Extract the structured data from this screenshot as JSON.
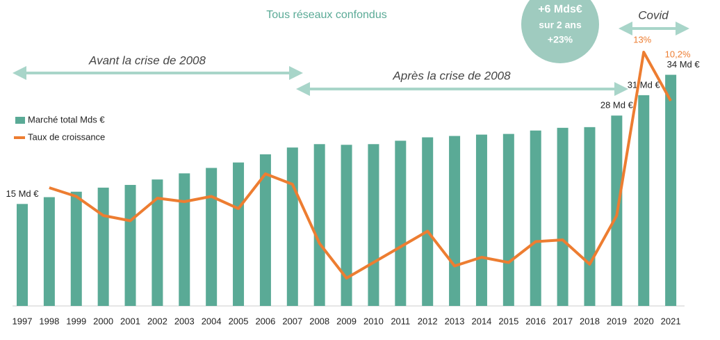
{
  "chart_data": {
    "type": "bar_line",
    "title": "Tous réseaux confondus",
    "annotations": {
      "circle": [
        "+6 Mds€",
        "sur 2 ans",
        "+23%"
      ],
      "covid": "Covid",
      "before": "Avant la crise de 2008",
      "after": "Après la crise de 2008"
    },
    "categories": [
      "1997",
      "1998",
      "1999",
      "2000",
      "2001",
      "2002",
      "2003",
      "2004",
      "2005",
      "2006",
      "2007",
      "2008",
      "2009",
      "2010",
      "2011",
      "2012",
      "2013",
      "2014",
      "2015",
      "2016",
      "2017",
      "2018",
      "2019",
      "2020",
      "2021"
    ],
    "series": [
      {
        "name": "Marché total Mds €",
        "color": "#5aaa96",
        "values": [
          15,
          16,
          16.8,
          17.4,
          17.8,
          18.6,
          19.5,
          20.3,
          21.1,
          22.3,
          23.3,
          23.8,
          23.7,
          23.8,
          24.3,
          24.8,
          25,
          25.2,
          25.3,
          25.8,
          26.2,
          26.3,
          28,
          31,
          34
        ],
        "value_labels": [
          "15  Md €",
          null,
          null,
          null,
          null,
          null,
          null,
          null,
          null,
          null,
          null,
          null,
          null,
          null,
          null,
          null,
          null,
          null,
          null,
          null,
          null,
          null,
          "28  Md €",
          "31  Md €",
          "34  Md €"
        ]
      },
      {
        "name": "Taux de croissance",
        "color": "#ed7d31",
        "axis": "y2",
        "values": [
          null,
          5.2,
          4.7,
          3.6,
          3.3,
          4.6,
          4.4,
          4.7,
          4.0,
          6.0,
          5.4,
          2.0,
          0.0,
          0.9,
          1.8,
          2.7,
          0.7,
          1.2,
          0.9,
          2.1,
          2.2,
          0.8,
          3.6,
          13,
          10.2
        ],
        "value_labels": [
          null,
          null,
          null,
          null,
          null,
          null,
          null,
          null,
          null,
          null,
          null,
          null,
          null,
          null,
          null,
          null,
          null,
          null,
          null,
          null,
          null,
          null,
          null,
          "13%",
          "10,2%"
        ]
      }
    ],
    "ylim": [
      0,
      45
    ],
    "y2lim": [
      -1.6,
      16
    ]
  }
}
